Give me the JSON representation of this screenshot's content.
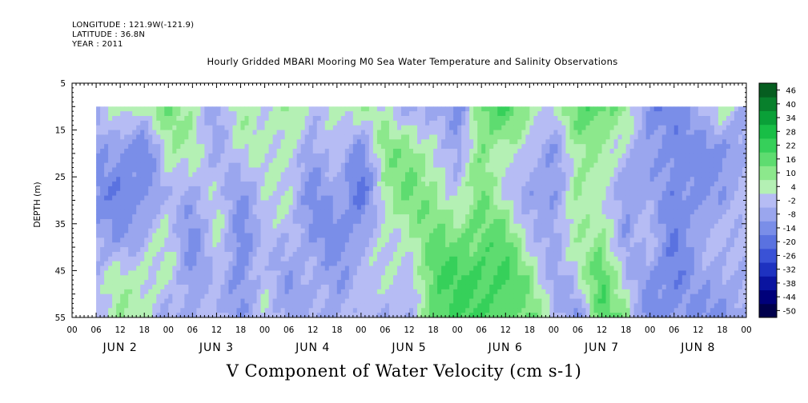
{
  "header": {
    "longitude": "LONGITUDE : 121.9W(-121.9)",
    "latitude": "LATITUDE : 36.8N",
    "year": "YEAR : 2011",
    "title": "Hourly Gridded MBARI Mooring M0 Sea Water Temperature and Salinity Observations"
  },
  "caption": "V Component of Water Velocity (cm s-1)",
  "chart_data": {
    "type": "heatmap",
    "title": "Hourly Gridded MBARI Mooring M0 Sea Water Temperature and Salinity Observations",
    "xlabel": "",
    "ylabel": "DEPTH (m)",
    "variable": "V Component of Water Velocity (cm s-1)",
    "x_unit": "hours since JUN 2 00:00",
    "xlim": [
      0,
      168
    ],
    "data_x_range": [
      6,
      168
    ],
    "ylim": [
      55,
      5
    ],
    "data_y_range": [
      10,
      55
    ],
    "y_ticks": [
      5,
      15,
      25,
      35,
      45,
      55
    ],
    "y_tick_labels": [
      "5",
      "15",
      "25",
      "35",
      "45",
      "55"
    ],
    "x_tick_labels": [
      "00",
      "06",
      "12",
      "18",
      "00",
      "06",
      "12",
      "18",
      "00",
      "06",
      "12",
      "18",
      "00",
      "06",
      "12",
      "18",
      "00",
      "06",
      "12",
      "18",
      "00",
      "06",
      "12",
      "18",
      "00",
      "06",
      "12",
      "18",
      "00"
    ],
    "day_labels": [
      "JUN 2",
      "JUN 3",
      "JUN 4",
      "JUN 5",
      "JUN 6",
      "JUN 7",
      "JUN 8"
    ],
    "colorbar_levels": [
      -50,
      -44,
      -38,
      -32,
      -26,
      -20,
      -14,
      -8,
      -2,
      4,
      10,
      16,
      22,
      28,
      34,
      40,
      46
    ],
    "colorbar_labels": [
      "46",
      "40",
      "34",
      "28",
      "22",
      "16",
      "10",
      "4",
      "-2",
      "-8",
      "-14",
      "-20",
      "-26",
      "-32",
      "-38",
      "-44",
      "-50"
    ],
    "colorbar_colors": [
      "#00004c",
      "#00007a",
      "#0a14a0",
      "#1e32c0",
      "#3a52d6",
      "#5a72e0",
      "#7a8ee8",
      "#9aa6ee",
      "#b6bcf4",
      "#b4f0b4",
      "#8ce88c",
      "#5edc70",
      "#36d05a",
      "#18be46",
      "#0aa038",
      "#08802c",
      "#065e20"
    ],
    "v_profile_cm_s": [
      {
        "hour": 6,
        "v": [
          -4,
          -6,
          -8,
          -6,
          -2,
          2
        ]
      },
      {
        "hour": 12,
        "v": [
          10,
          -10,
          -14,
          -8,
          6,
          8
        ]
      },
      {
        "hour": 18,
        "v": [
          8,
          -12,
          -12,
          -2,
          8,
          6
        ]
      },
      {
        "hour": 24,
        "v": [
          14,
          8,
          2,
          4,
          4,
          -2
        ]
      },
      {
        "hour": 30,
        "v": [
          10,
          6,
          -4,
          -10,
          -10,
          -6
        ]
      },
      {
        "hour": 36,
        "v": [
          -6,
          -2,
          2,
          6,
          2,
          2
        ]
      },
      {
        "hour": 42,
        "v": [
          8,
          4,
          -6,
          -14,
          -12,
          -8
        ]
      },
      {
        "hour": 48,
        "v": [
          6,
          4,
          2,
          4,
          2,
          2
        ]
      },
      {
        "hour": 54,
        "v": [
          10,
          8,
          4,
          -2,
          -6,
          -4
        ]
      },
      {
        "hour": 60,
        "v": [
          -2,
          -6,
          -10,
          -8,
          -4,
          -2
        ]
      },
      {
        "hour": 66,
        "v": [
          10,
          2,
          -6,
          -10,
          -8,
          -6
        ]
      },
      {
        "hour": 72,
        "v": [
          8,
          -8,
          -18,
          -10,
          2,
          4
        ]
      },
      {
        "hour": 78,
        "v": [
          4,
          12,
          10,
          6,
          2,
          -2
        ]
      },
      {
        "hour": 84,
        "v": [
          -2,
          14,
          16,
          8,
          2,
          -4
        ]
      },
      {
        "hour": 90,
        "v": [
          -6,
          6,
          12,
          16,
          20,
          20
        ]
      },
      {
        "hour": 96,
        "v": [
          -12,
          -8,
          2,
          16,
          22,
          22
        ]
      },
      {
        "hour": 102,
        "v": [
          18,
          16,
          14,
          18,
          24,
          22
        ]
      },
      {
        "hour": 108,
        "v": [
          22,
          8,
          4,
          16,
          22,
          20
        ]
      },
      {
        "hour": 114,
        "v": [
          10,
          -2,
          -6,
          2,
          12,
          16
        ]
      },
      {
        "hour": 120,
        "v": [
          4,
          -6,
          -10,
          -6,
          -4,
          2
        ]
      },
      {
        "hour": 126,
        "v": [
          18,
          10,
          14,
          8,
          2,
          -8
        ]
      },
      {
        "hour": 132,
        "v": [
          22,
          8,
          2,
          14,
          22,
          18
        ]
      },
      {
        "hour": 138,
        "v": [
          12,
          4,
          -8,
          -10,
          2,
          14
        ]
      },
      {
        "hour": 144,
        "v": [
          -14,
          -8,
          -2,
          2,
          -10,
          -14
        ]
      },
      {
        "hour": 150,
        "v": [
          -10,
          -12,
          -14,
          -12,
          -14,
          -10
        ]
      },
      {
        "hour": 156,
        "v": [
          -4,
          -8,
          -10,
          -6,
          -4,
          -8
        ]
      },
      {
        "hour": 162,
        "v": [
          8,
          -12,
          -6,
          2,
          -6,
          -10
        ]
      },
      {
        "hour": 168,
        "v": [
          -2,
          -4,
          0,
          2,
          0,
          -6
        ]
      }
    ],
    "v_profile_depths_m": [
      10,
      19,
      28,
      37,
      46,
      55
    ],
    "grid": false
  }
}
